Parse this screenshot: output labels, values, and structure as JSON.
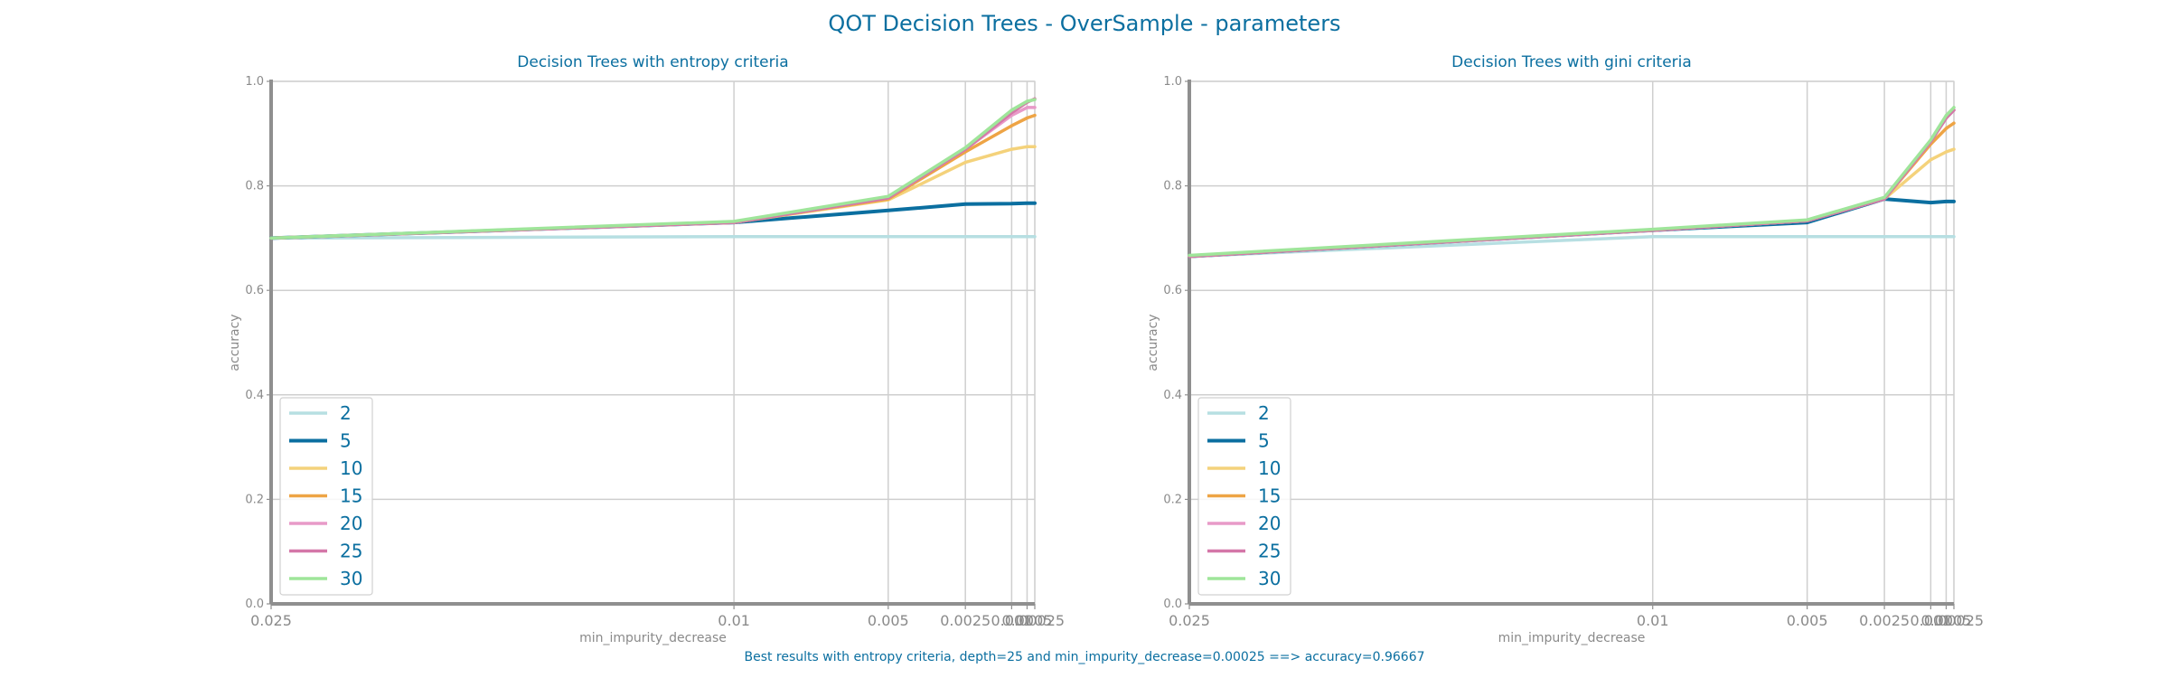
{
  "figure": {
    "suptitle": "QOT Decision Trees - OverSample - parameters",
    "footer": "Best results with entropy criteria, depth=25 and min_impurity_decrease=0.00025 ==> accuracy=0.96667"
  },
  "colors": {
    "2": "#b7dfe2",
    "5": "#0b6fa0",
    "10": "#f4d27b",
    "15": "#eea445",
    "20": "#e89ac8",
    "25": "#d477a8",
    "30": "#9fe59a",
    "grid": "#cfcfcf",
    "axis": "#8f8f8f",
    "title": "#0b6fa0"
  },
  "chart_data": [
    {
      "type": "line",
      "title": "Decision Trees with entropy criteria",
      "xlabel": "min_impurity_decrease",
      "ylabel": "accuracy",
      "x": [
        0.025,
        0.01,
        0.005,
        0.0025,
        0.001,
        0.0005,
        0.00025
      ],
      "x_tick_labels": [
        "0.025",
        "0.01",
        "0.005",
        "0.0025",
        "0.001",
        "0.0005",
        "0.00025"
      ],
      "ylim": [
        0.0,
        1.0
      ],
      "y_ticks": [
        "0.0",
        "0.2",
        "0.4",
        "0.6",
        "0.8",
        "1.0"
      ],
      "grid": true,
      "legend_position": "lower-left",
      "series": [
        {
          "name": "2",
          "values": [
            0.7,
            0.703,
            0.703,
            0.703,
            0.703,
            0.703,
            0.703
          ]
        },
        {
          "name": "5",
          "values": [
            0.7,
            0.73,
            0.753,
            0.765,
            0.766,
            0.767,
            0.767
          ]
        },
        {
          "name": "10",
          "values": [
            0.7,
            0.73,
            0.773,
            0.845,
            0.87,
            0.875,
            0.875
          ]
        },
        {
          "name": "15",
          "values": [
            0.7,
            0.73,
            0.775,
            0.865,
            0.915,
            0.93,
            0.935
          ]
        },
        {
          "name": "20",
          "values": [
            0.7,
            0.73,
            0.777,
            0.87,
            0.935,
            0.95,
            0.95
          ]
        },
        {
          "name": "25",
          "values": [
            0.7,
            0.73,
            0.777,
            0.87,
            0.94,
            0.96,
            0.96667
          ]
        },
        {
          "name": "30",
          "values": [
            0.7,
            0.732,
            0.78,
            0.873,
            0.945,
            0.962,
            0.965
          ]
        }
      ]
    },
    {
      "type": "line",
      "title": "Decision Trees with gini criteria",
      "xlabel": "min_impurity_decrease",
      "ylabel": "accuracy",
      "x": [
        0.025,
        0.01,
        0.005,
        0.0025,
        0.001,
        0.0005,
        0.00025
      ],
      "x_tick_labels": [
        "0.025",
        "0.01",
        "0.005",
        "0.0025",
        "0.001",
        "0.0005",
        "0.00025"
      ],
      "ylim": [
        0.0,
        1.0
      ],
      "y_ticks": [
        "0.0",
        "0.2",
        "0.4",
        "0.6",
        "0.8",
        "1.0"
      ],
      "grid": true,
      "legend_position": "lower-left",
      "series": [
        {
          "name": "2",
          "values": [
            0.665,
            0.703,
            0.703,
            0.703,
            0.703,
            0.703,
            0.703
          ]
        },
        {
          "name": "5",
          "values": [
            0.665,
            0.715,
            0.73,
            0.775,
            0.768,
            0.77,
            0.77
          ]
        },
        {
          "name": "10",
          "values": [
            0.665,
            0.715,
            0.733,
            0.775,
            0.85,
            0.865,
            0.87
          ]
        },
        {
          "name": "15",
          "values": [
            0.665,
            0.715,
            0.733,
            0.775,
            0.88,
            0.91,
            0.92
          ]
        },
        {
          "name": "20",
          "values": [
            0.665,
            0.715,
            0.733,
            0.775,
            0.885,
            0.93,
            0.945
          ]
        },
        {
          "name": "25",
          "values": [
            0.665,
            0.715,
            0.733,
            0.775,
            0.885,
            0.93,
            0.945
          ]
        },
        {
          "name": "30",
          "values": [
            0.667,
            0.717,
            0.735,
            0.778,
            0.888,
            0.935,
            0.95
          ]
        }
      ]
    }
  ]
}
